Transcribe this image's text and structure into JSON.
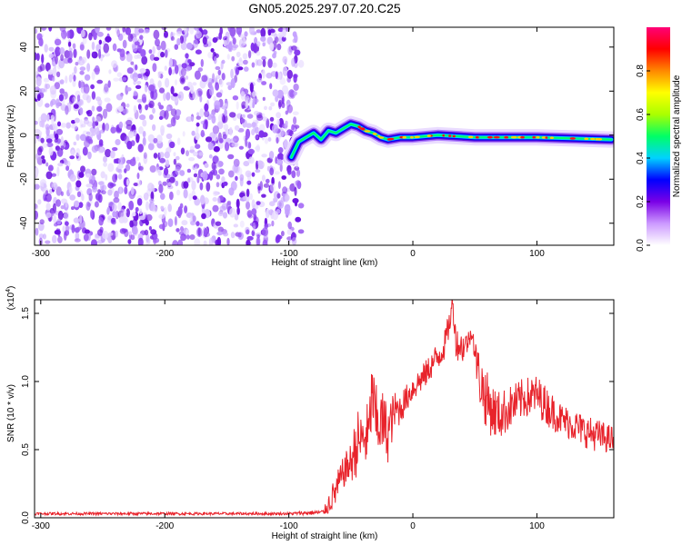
{
  "title": "GN05.2025.297.07.20.C25",
  "chart_data": [
    {
      "type": "heatmap",
      "name": "spectrogram",
      "xlabel": "Height of straight line (km)",
      "ylabel": "Frequency (Hz)",
      "xlim": [
        -305,
        162
      ],
      "ylim": [
        -50,
        49
      ],
      "x_ticks": [
        -300,
        -200,
        -100,
        0,
        100
      ],
      "x_tick_labels": [
        "-300",
        "-200",
        "-100",
        "0",
        "100"
      ],
      "y_ticks": [
        -40,
        -20,
        0,
        20,
        40
      ],
      "y_tick_labels": [
        "-40",
        "-20",
        "0",
        "20",
        "40"
      ],
      "noise_region_x": [
        -305,
        -90
      ],
      "signal_track": [
        {
          "x": -98,
          "f": -10
        },
        {
          "x": -92,
          "f": -3
        },
        {
          "x": -86,
          "f": -1
        },
        {
          "x": -80,
          "f": 1
        },
        {
          "x": -74,
          "f": -2
        },
        {
          "x": -68,
          "f": 2
        },
        {
          "x": -62,
          "f": 1
        },
        {
          "x": -56,
          "f": 3
        },
        {
          "x": -50,
          "f": 5
        },
        {
          "x": -44,
          "f": 4
        },
        {
          "x": -38,
          "f": 2
        },
        {
          "x": -32,
          "f": 1
        },
        {
          "x": -26,
          "f": -1
        },
        {
          "x": -20,
          "f": -2
        },
        {
          "x": -10,
          "f": -1
        },
        {
          "x": 0,
          "f": -1
        },
        {
          "x": 20,
          "f": 0
        },
        {
          "x": 50,
          "f": -1
        },
        {
          "x": 100,
          "f": -1
        },
        {
          "x": 160,
          "f": -2
        }
      ],
      "colorbar": {
        "label": "Normalized spectral amplitude",
        "range": [
          0,
          1
        ],
        "ticks": [
          0,
          0.2,
          0.4,
          0.6,
          0.8
        ],
        "tick_labels": [
          "0.0",
          "0.2",
          "0.4",
          "0.6",
          "0.8"
        ],
        "colors": [
          "#ffffff",
          "#cc99ff",
          "#7a00e6",
          "#0000ff",
          "#00d2ff",
          "#00ff66",
          "#aaff00",
          "#ffff00",
          "#ff8800",
          "#ff0000",
          "#ff0077"
        ]
      }
    },
    {
      "type": "line",
      "name": "snr",
      "xlabel": "Height of straight line (km)",
      "ylabel": "SNR (10 * v/v)",
      "y_multiplier": "(x10",
      "y_multiplier_exp": "4",
      "y_multiplier_close": ")",
      "xlim": [
        -305,
        162
      ],
      "ylim": [
        0,
        1.6
      ],
      "x_ticks": [
        -300,
        -200,
        -100,
        0,
        100
      ],
      "x_tick_labels": [
        "-300",
        "-200",
        "-100",
        "0",
        "100"
      ],
      "y_ticks": [
        0,
        0.5,
        1.0,
        1.5
      ],
      "y_tick_labels": [
        "0.0",
        "0.5",
        "1.0",
        "1.5"
      ],
      "color": "#e8232b",
      "series": [
        {
          "name": "SNR",
          "x": [
            -305,
            -200,
            -100,
            -72,
            -68,
            -62,
            -55,
            -50,
            -45,
            -40,
            -35,
            -33,
            -30,
            -25,
            -20,
            -15,
            -10,
            -5,
            0,
            5,
            10,
            15,
            20,
            25,
            30,
            32,
            35,
            40,
            45,
            48,
            50,
            55,
            60,
            65,
            70,
            80,
            90,
            100,
            110,
            120,
            130,
            140,
            150,
            162
          ],
          "y": [
            0.03,
            0.03,
            0.03,
            0.04,
            0.1,
            0.2,
            0.35,
            0.4,
            0.55,
            0.58,
            0.6,
            0.95,
            0.7,
            0.7,
            0.62,
            0.78,
            0.8,
            0.88,
            0.95,
            1.0,
            1.05,
            1.12,
            1.18,
            1.25,
            1.45,
            1.58,
            1.28,
            1.25,
            1.3,
            1.38,
            1.2,
            0.98,
            0.85,
            0.78,
            0.75,
            0.82,
            0.88,
            0.9,
            0.8,
            0.72,
            0.68,
            0.63,
            0.6,
            0.57
          ],
          "noise_amp": [
            0.01,
            0.01,
            0.01,
            0.02,
            0.08,
            0.12,
            0.12,
            0.15,
            0.25,
            0.18,
            0.3,
            0.22,
            0.28,
            0.25,
            0.22,
            0.15,
            0.12,
            0.1,
            0.1,
            0.1,
            0.1,
            0.1,
            0.12,
            0.1,
            0.1,
            0.08,
            0.12,
            0.12,
            0.08,
            0.06,
            0.12,
            0.22,
            0.22,
            0.2,
            0.18,
            0.16,
            0.15,
            0.15,
            0.14,
            0.12,
            0.12,
            0.12,
            0.12,
            0.1
          ]
        }
      ]
    }
  ]
}
